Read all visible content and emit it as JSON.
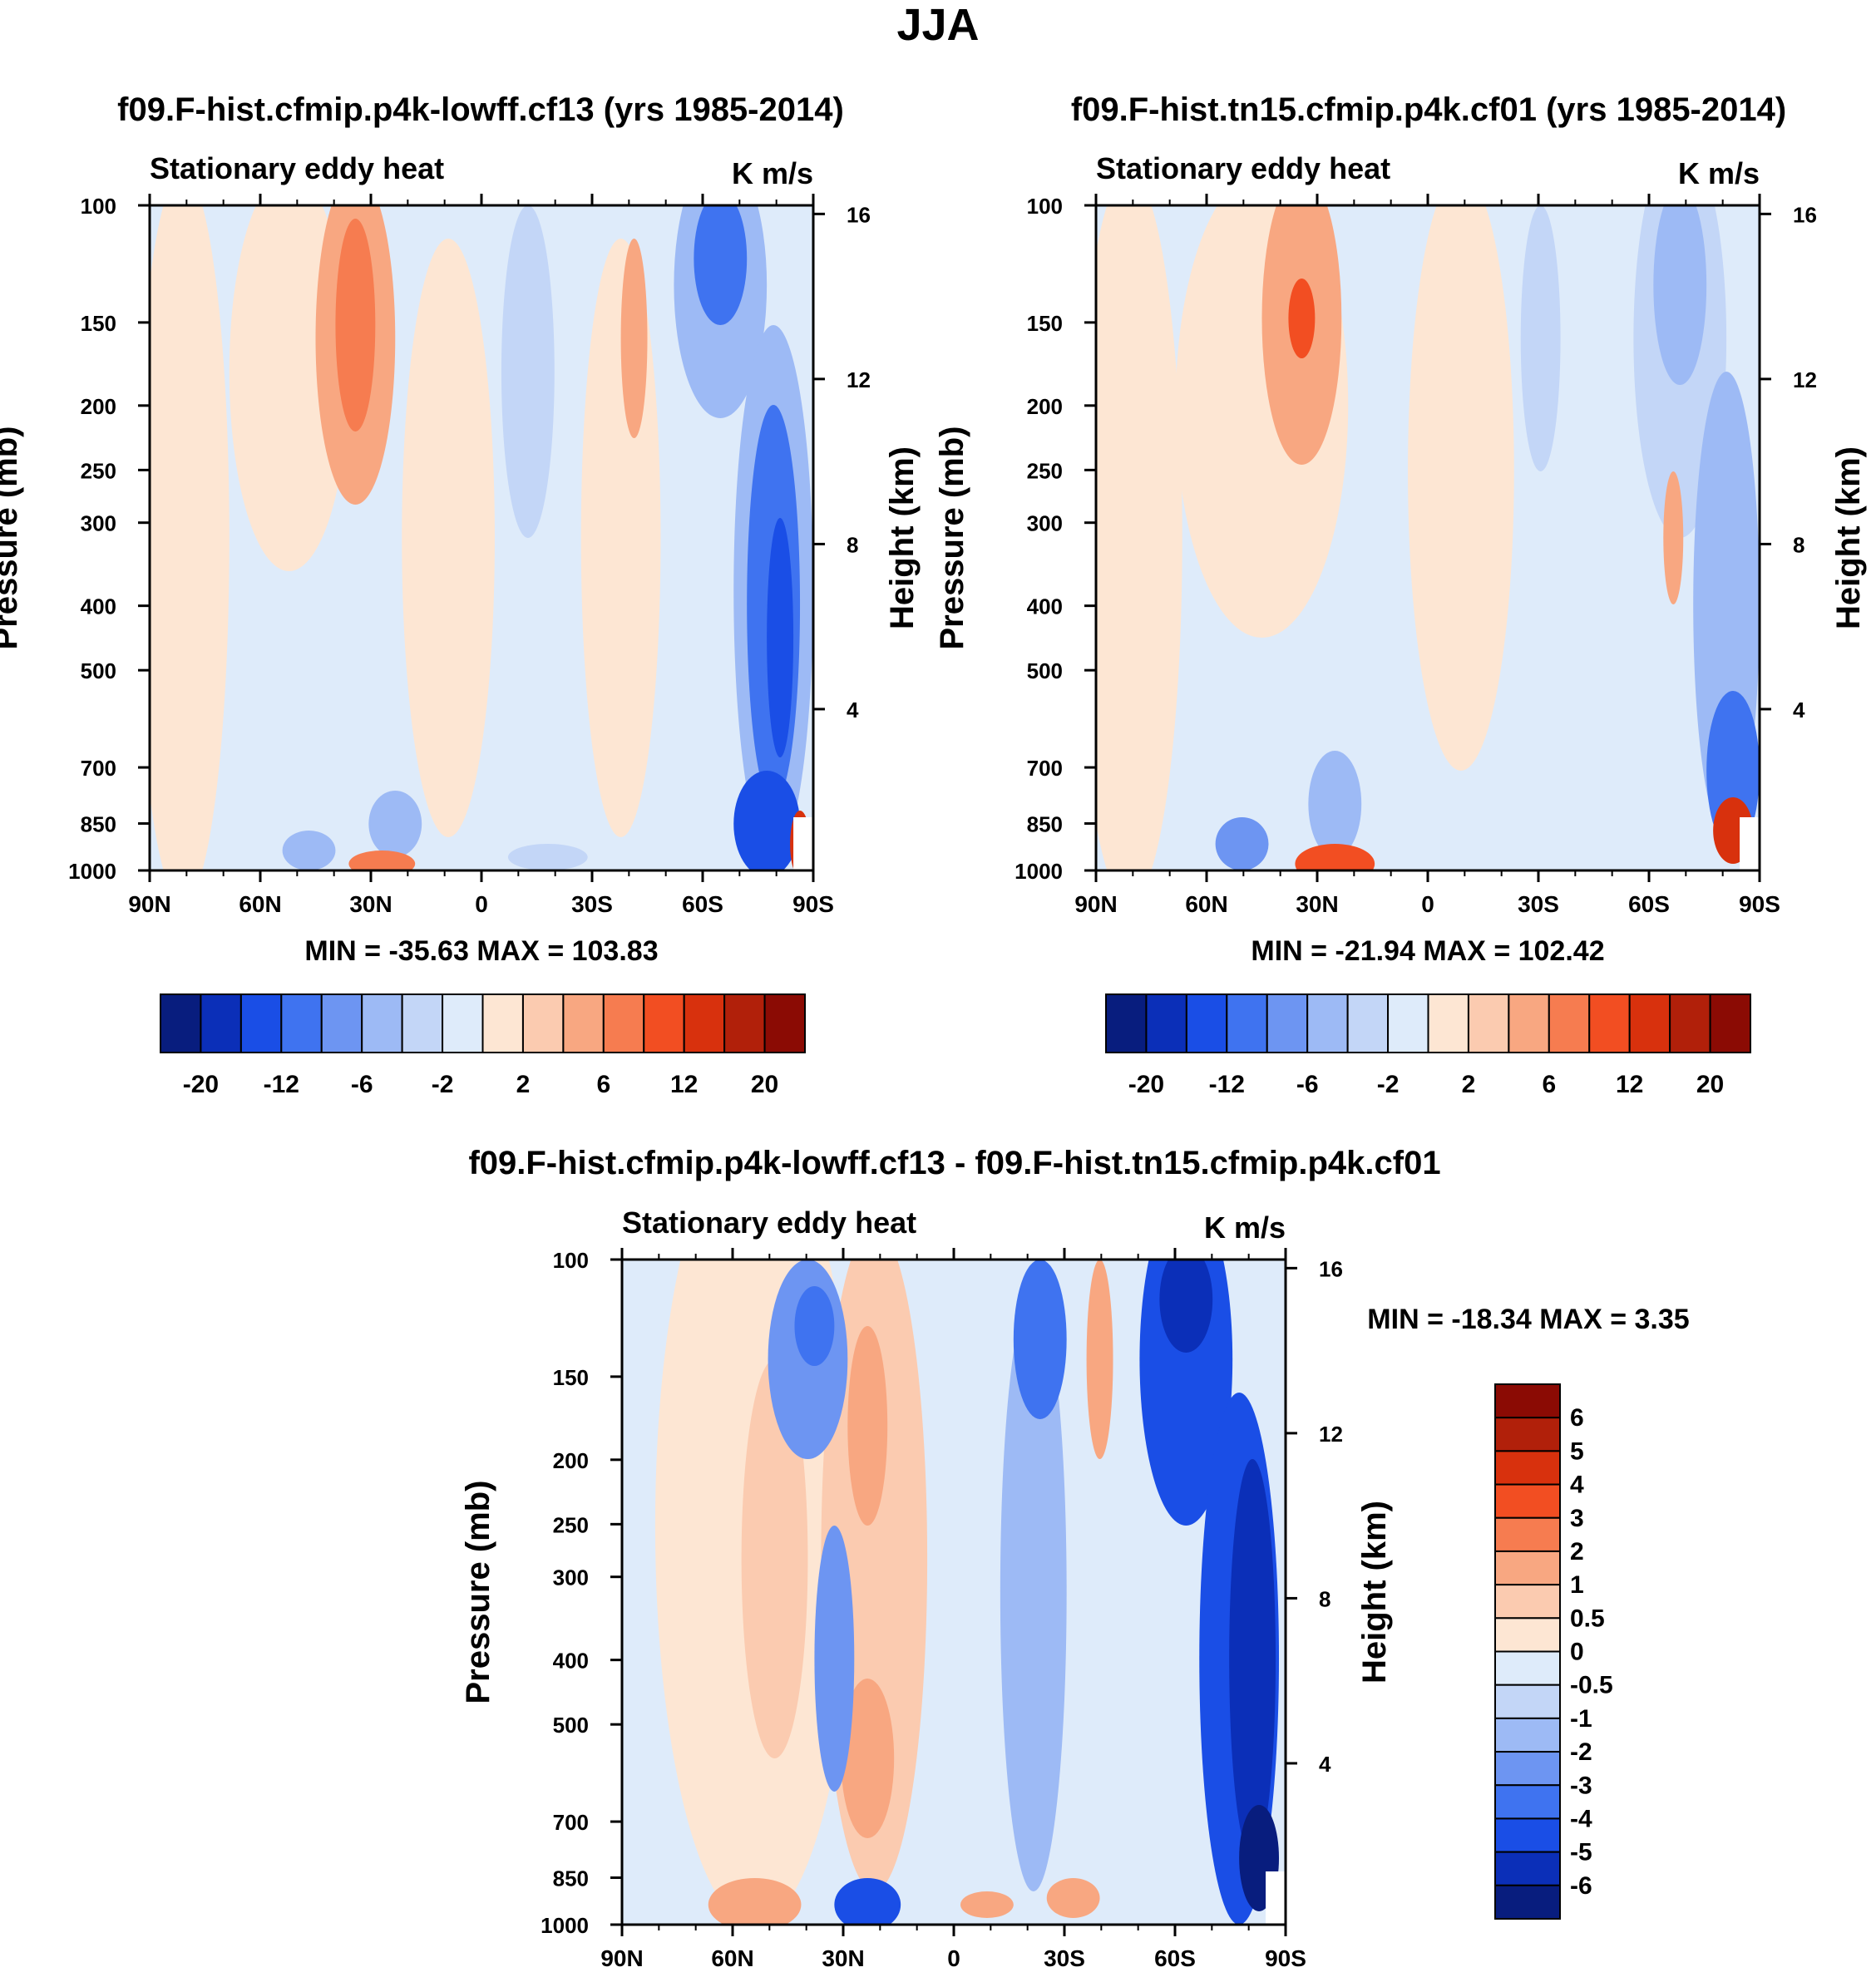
{
  "page_title": "JJA",
  "chart_data": [
    {
      "type": "contour",
      "title": "f09.F-hist.cfmip.p4k-lowff.cf13 (yrs 1985-2014)",
      "variable": "Stationary eddy heat",
      "units": "K m/s",
      "ylabel": "Pressure (mb)",
      "ylabel_right": "Height (km)",
      "x_ticks": [
        "90N",
        "60N",
        "30N",
        "0",
        "30S",
        "60S",
        "90S"
      ],
      "y_ticks": [
        "100",
        "150",
        "200",
        "250",
        "300",
        "400",
        "500",
        "700",
        "850",
        "1000"
      ],
      "height_ticks": [
        "16",
        "12",
        "8",
        "4"
      ],
      "stats": "MIN = -35.63  MAX = 103.83",
      "colorbar_labels": [
        "-20",
        "-12",
        "-6",
        "-2",
        "2",
        "6",
        "12",
        "20"
      ],
      "colorbar_colors": [
        "#081d7e",
        "#0b2fb8",
        "#1a4ee6",
        "#3f73f0",
        "#6d95f2",
        "#9dbaf5",
        "#c3d6f7",
        "#deebfa",
        "#fde6d3",
        "#fbcbb0",
        "#f8a781",
        "#f67c50",
        "#f24e22",
        "#d8310d",
        "#b1200a",
        "#8b0b04"
      ],
      "summary": "Weak positive/negative alternations at most latitudes; strong negative core near 70-80S extending from surface to ~300 mb; small positive maximum near 85S at the surface."
    },
    {
      "type": "contour",
      "title": "f09.F-hist.tn15.cfmip.p4k.cf01 (yrs 1985-2014)",
      "variable": "Stationary eddy heat",
      "units": "K m/s",
      "ylabel": "Pressure (mb)",
      "ylabel_right": "Height (km)",
      "x_ticks": [
        "90N",
        "60N",
        "30N",
        "0",
        "30S",
        "60S",
        "90S"
      ],
      "y_ticks": [
        "100",
        "150",
        "200",
        "250",
        "300",
        "400",
        "500",
        "700",
        "850",
        "1000"
      ],
      "height_ticks": [
        "16",
        "12",
        "8",
        "4"
      ],
      "stats": "MIN = -21.94  MAX = 102.42",
      "colorbar_labels": [
        "-20",
        "-12",
        "-6",
        "-2",
        "2",
        "6",
        "12",
        "20"
      ],
      "colorbar_colors": [
        "#081d7e",
        "#0b2fb8",
        "#1a4ee6",
        "#3f73f0",
        "#6d95f2",
        "#9dbaf5",
        "#c3d6f7",
        "#deebfa",
        "#fde6d3",
        "#fbcbb0",
        "#f8a781",
        "#f67c50",
        "#f24e22",
        "#d8310d",
        "#b1200a",
        "#8b0b04"
      ],
      "summary": "Positive band near 30N aloft; negative features near 70-80S; positive maximum near 80S at the surface."
    },
    {
      "type": "contour",
      "title": "f09.F-hist.cfmip.p4k-lowff.cf13 - f09.F-hist.tn15.cfmip.p4k.cf01",
      "variable": "Stationary eddy heat",
      "units": "K m/s",
      "ylabel": "Pressure (mb)",
      "ylabel_right": "Height (km)",
      "x_ticks": [
        "90N",
        "60N",
        "30N",
        "0",
        "30S",
        "60S",
        "90S"
      ],
      "y_ticks": [
        "100",
        "150",
        "200",
        "250",
        "300",
        "400",
        "500",
        "700",
        "850",
        "1000"
      ],
      "height_ticks": [
        "16",
        "12",
        "8",
        "4"
      ],
      "stats": "MIN = -18.34  MAX =   3.35",
      "colorbar_labels": [
        "6",
        "5",
        "4",
        "3",
        "2",
        "1",
        "0.5",
        "0",
        "-0.5",
        "-1",
        "-2",
        "-3",
        "-4",
        "-5",
        "-6"
      ],
      "colorbar_colors": [
        "#8b0b04",
        "#b1200a",
        "#d8310d",
        "#f24e22",
        "#f67c50",
        "#f8a781",
        "#fbcbb0",
        "#fde6d3",
        "#deebfa",
        "#c3d6f7",
        "#9dbaf5",
        "#6d95f2",
        "#3f73f0",
        "#1a4ee6",
        "#0b2fb8",
        "#081d7e"
      ],
      "summary": "Negative differences dominate at 60-90S throughout the column; positive differences near 30N aloft and at the surface near 50-60N."
    }
  ]
}
